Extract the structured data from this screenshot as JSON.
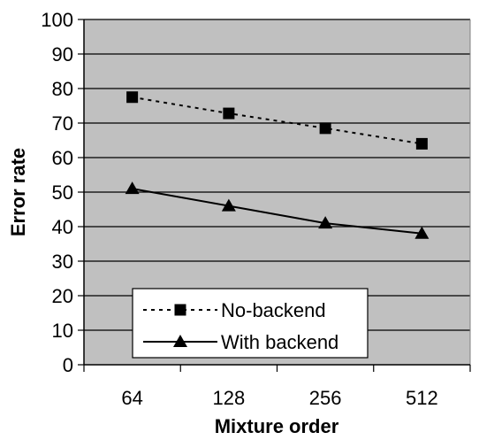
{
  "chart_data": {
    "type": "line",
    "title": "",
    "xlabel": "Mixture order",
    "ylabel": "Error rate",
    "categories": [
      "64",
      "128",
      "256",
      "512"
    ],
    "ylim": [
      0,
      100
    ],
    "yticks": [
      "0",
      "10",
      "20",
      "30",
      "40",
      "50",
      "60",
      "70",
      "80",
      "90",
      "100"
    ],
    "grid": "horizontal",
    "plot_background": "#c0c0c0",
    "legend_position": "bottom-center",
    "series": [
      {
        "name": "No-backend",
        "values": [
          77.5,
          72.8,
          68.5,
          64.0
        ],
        "marker": "square",
        "line_style": "dotted",
        "color": "#000000"
      },
      {
        "name": "With backend",
        "values": [
          51.0,
          46.0,
          41.0,
          38.0
        ],
        "marker": "triangle",
        "line_style": "solid",
        "color": "#000000"
      }
    ]
  }
}
